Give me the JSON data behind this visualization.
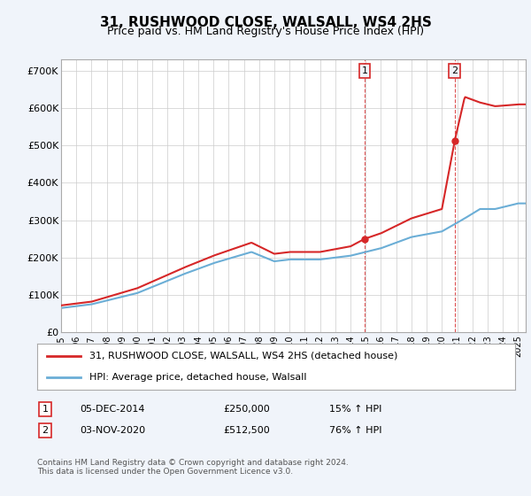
{
  "title": "31, RUSHWOOD CLOSE, WALSALL, WS4 2HS",
  "subtitle": "Price paid vs. HM Land Registry's House Price Index (HPI)",
  "xlim_start": 1995,
  "xlim_end": 2025.5,
  "ylim": [
    0,
    730000
  ],
  "yticks": [
    0,
    100000,
    200000,
    300000,
    400000,
    500000,
    600000,
    700000
  ],
  "ytick_labels": [
    "£0",
    "£100K",
    "£200K",
    "£300K",
    "£400K",
    "£500K",
    "£600K",
    "£700K"
  ],
  "hpi_color": "#6baed6",
  "price_color": "#d62728",
  "marker1_date": 2014.92,
  "marker1_price": 250000,
  "marker2_date": 2020.84,
  "marker2_price": 512500,
  "legend_label1": "31, RUSHWOOD CLOSE, WALSALL, WS4 2HS (detached house)",
  "legend_label2": "HPI: Average price, detached house, Walsall",
  "table_row1": [
    "1",
    "05-DEC-2014",
    "£250,000",
    "15% ↑ HPI"
  ],
  "table_row2": [
    "2",
    "03-NOV-2020",
    "£512,500",
    "76% ↑ HPI"
  ],
  "footnote": "Contains HM Land Registry data © Crown copyright and database right 2024.\nThis data is licensed under the Open Government Licence v3.0.",
  "background_color": "#f0f4fa",
  "plot_bg_color": "#ffffff"
}
